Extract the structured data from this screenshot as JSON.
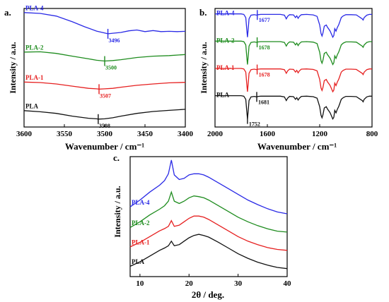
{
  "chart_data": [
    {
      "panel": "a.",
      "type": "line",
      "xlabel": "Wavenumber / cm⁻¹",
      "ylabel": "Intensity / a.u.",
      "xlim": [
        3600,
        3400
      ],
      "xticks": [
        "3600",
        "3550",
        "3500",
        "3450",
        "3400"
      ],
      "series": [
        {
          "name": "PLA-4",
          "color": "#2a2ae6",
          "label_x": 3596,
          "offset": 3.0,
          "x": [
            3600,
            3580,
            3560,
            3540,
            3525,
            3510,
            3500,
            3496,
            3490,
            3480,
            3470,
            3460,
            3450,
            3440,
            3430,
            3420,
            3410,
            3400
          ],
          "y": [
            1.0,
            0.97,
            0.87,
            0.66,
            0.48,
            0.32,
            0.25,
            0.22,
            0.24,
            0.27,
            0.33,
            0.36,
            0.3,
            0.34,
            0.3,
            0.31,
            0.3,
            0.31
          ]
        },
        {
          "name": "PLA-2",
          "color": "#1e8c1e",
          "label_x": 3596,
          "offset": 2.0,
          "x": [
            3600,
            3580,
            3560,
            3540,
            3520,
            3510,
            3500,
            3490,
            3480,
            3460,
            3440,
            3420,
            3400
          ],
          "y": [
            0.55,
            0.56,
            0.5,
            0.4,
            0.3,
            0.25,
            0.22,
            0.24,
            0.27,
            0.35,
            0.4,
            0.42,
            0.46
          ]
        },
        {
          "name": "PLA-1",
          "color": "#e62020",
          "label_x": 3596,
          "offset": 1.0,
          "x": [
            3600,
            3580,
            3560,
            3540,
            3520,
            3510,
            3507,
            3500,
            3490,
            3480,
            3460,
            3440,
            3420,
            3400
          ],
          "y": [
            0.45,
            0.43,
            0.38,
            0.3,
            0.22,
            0.2,
            0.19,
            0.2,
            0.22,
            0.26,
            0.33,
            0.38,
            0.42,
            0.44
          ]
        },
        {
          "name": "PLA",
          "color": "#111111",
          "label_x": 3596,
          "offset": 0.0,
          "x": [
            3600,
            3580,
            3560,
            3540,
            3520,
            3510,
            3508,
            3500,
            3490,
            3480,
            3460,
            3440,
            3420,
            3400
          ],
          "y": [
            0.4,
            0.36,
            0.3,
            0.2,
            0.12,
            0.1,
            0.09,
            0.1,
            0.14,
            0.2,
            0.3,
            0.37,
            0.41,
            0.45
          ]
        }
      ],
      "annotations": [
        {
          "text": "3496",
          "x": 3496,
          "series": "PLA-4",
          "color": "#2a2ae6"
        },
        {
          "text": "3500",
          "x": 3500,
          "series": "PLA-2",
          "color": "#1e8c1e"
        },
        {
          "text": "3507",
          "x": 3507,
          "series": "PLA-1",
          "color": "#e62020"
        },
        {
          "text": "3508",
          "x": 3508,
          "series": "PLA",
          "color": "#111111"
        }
      ]
    },
    {
      "panel": "b.",
      "type": "line",
      "xlabel": "Wavenumber / cm⁻¹",
      "ylabel": "Intensity / a.u.",
      "xlim": [
        2000,
        800
      ],
      "xticks": [
        "2000",
        "1600",
        "1200",
        "800"
      ],
      "series": [
        {
          "name": "PLA-4",
          "color": "#2a2ae6",
          "offset": 3.0
        },
        {
          "name": "PLA-2",
          "color": "#1e8c1e",
          "offset": 2.0
        },
        {
          "name": "PLA-1",
          "color": "#e62020",
          "offset": 1.0
        },
        {
          "name": "PLA",
          "color": "#111111",
          "offset": 0.0
        }
      ],
      "base_spectrum": {
        "x": [
          2000,
          1800,
          1780,
          1765,
          1758,
          1752,
          1746,
          1740,
          1725,
          1700,
          1681,
          1670,
          1650,
          1500,
          1470,
          1455,
          1445,
          1430,
          1400,
          1385,
          1375,
          1365,
          1355,
          1340,
          1300,
          1250,
          1220,
          1200,
          1190,
          1182,
          1175,
          1165,
          1150,
          1140,
          1130,
          1120,
          1110,
          1100,
          1092,
          1085,
          1075,
          1065,
          1055,
          1045,
          1035,
          1020,
          1000,
          960,
          920,
          875,
          868,
          860,
          840,
          820,
          800
        ],
        "y": [
          1.0,
          1.0,
          0.98,
          0.85,
          0.4,
          0.05,
          0.4,
          0.8,
          0.95,
          0.97,
          0.95,
          0.97,
          0.98,
          0.98,
          0.95,
          0.8,
          0.9,
          0.97,
          0.96,
          0.85,
          0.92,
          0.82,
          0.9,
          0.97,
          0.98,
          0.96,
          0.9,
          0.55,
          0.2,
          0.1,
          0.22,
          0.5,
          0.55,
          0.45,
          0.38,
          0.3,
          0.18,
          0.05,
          0.12,
          0.4,
          0.3,
          0.45,
          0.55,
          0.7,
          0.85,
          0.92,
          0.97,
          0.97,
          0.96,
          0.8,
          0.75,
          0.85,
          0.95,
          0.98,
          0.98
        ]
      },
      "annotations": [
        {
          "text": "1752",
          "x": 1752,
          "series": "PLA",
          "color": "#111111"
        },
        {
          "text": "1677",
          "x": 1677,
          "series": "PLA-4",
          "color": "#2a2ae6"
        },
        {
          "text": "1678",
          "x": 1678,
          "series": "PLA-2",
          "color": "#1e8c1e"
        },
        {
          "text": "1678",
          "x": 1678,
          "series": "PLA-1",
          "color": "#e62020"
        },
        {
          "text": "1681",
          "x": 1681,
          "series": "PLA",
          "color": "#111111"
        }
      ]
    },
    {
      "panel": "c.",
      "type": "line",
      "xlabel": "2θ / deg.",
      "ylabel": "Intensity / a.u.",
      "xlim": [
        8,
        40
      ],
      "xticks": [
        "10",
        "20",
        "30",
        "40"
      ],
      "series": [
        {
          "name": "PLA-4",
          "color": "#2a2ae6",
          "offset": 2.4,
          "x": [
            8,
            10,
            12,
            14,
            15,
            15.8,
            16.4,
            17.0,
            18,
            19,
            20,
            21,
            22,
            23,
            24,
            26,
            28,
            30,
            32,
            34,
            36,
            38,
            40
          ],
          "y": [
            0.3,
            0.6,
            0.95,
            1.25,
            1.45,
            1.75,
            2.35,
            1.7,
            1.5,
            1.55,
            1.7,
            1.75,
            1.75,
            1.7,
            1.6,
            1.35,
            1.1,
            0.85,
            0.6,
            0.4,
            0.22,
            0.08,
            0.0
          ]
        },
        {
          "name": "PLA-2",
          "color": "#1e8c1e",
          "offset": 1.6,
          "x": [
            8,
            10,
            12,
            14,
            15,
            15.8,
            16.4,
            17.0,
            18,
            19,
            20,
            21,
            22,
            23,
            24,
            26,
            28,
            30,
            32,
            34,
            36,
            38,
            40
          ],
          "y": [
            0.2,
            0.45,
            0.75,
            1.0,
            1.15,
            1.35,
            1.75,
            1.35,
            1.25,
            1.35,
            1.5,
            1.58,
            1.55,
            1.5,
            1.4,
            1.15,
            0.9,
            0.65,
            0.45,
            0.28,
            0.14,
            0.04,
            0.0
          ]
        },
        {
          "name": "PLA-1",
          "color": "#e62020",
          "offset": 0.8,
          "x": [
            8,
            10,
            12,
            14,
            15,
            15.8,
            16.4,
            17.0,
            18,
            19,
            20,
            21,
            22,
            23,
            24,
            26,
            28,
            30,
            32,
            34,
            36,
            38,
            40
          ],
          "y": [
            0.15,
            0.35,
            0.6,
            0.85,
            0.95,
            1.05,
            1.3,
            1.05,
            1.1,
            1.25,
            1.4,
            1.5,
            1.5,
            1.45,
            1.35,
            1.1,
            0.85,
            0.6,
            0.4,
            0.25,
            0.12,
            0.04,
            0.0
          ]
        },
        {
          "name": "PLA",
          "color": "#111111",
          "offset": 0.0,
          "x": [
            8,
            10,
            12,
            14,
            15,
            15.8,
            16.4,
            17.0,
            18,
            19,
            20,
            21,
            22,
            23,
            24,
            26,
            28,
            30,
            32,
            34,
            36,
            38,
            40
          ],
          "y": [
            0.1,
            0.3,
            0.55,
            0.8,
            0.9,
            1.0,
            1.2,
            1.0,
            1.05,
            1.2,
            1.35,
            1.45,
            1.5,
            1.45,
            1.38,
            1.15,
            0.9,
            0.65,
            0.45,
            0.28,
            0.15,
            0.05,
            0.0
          ]
        }
      ]
    }
  ]
}
